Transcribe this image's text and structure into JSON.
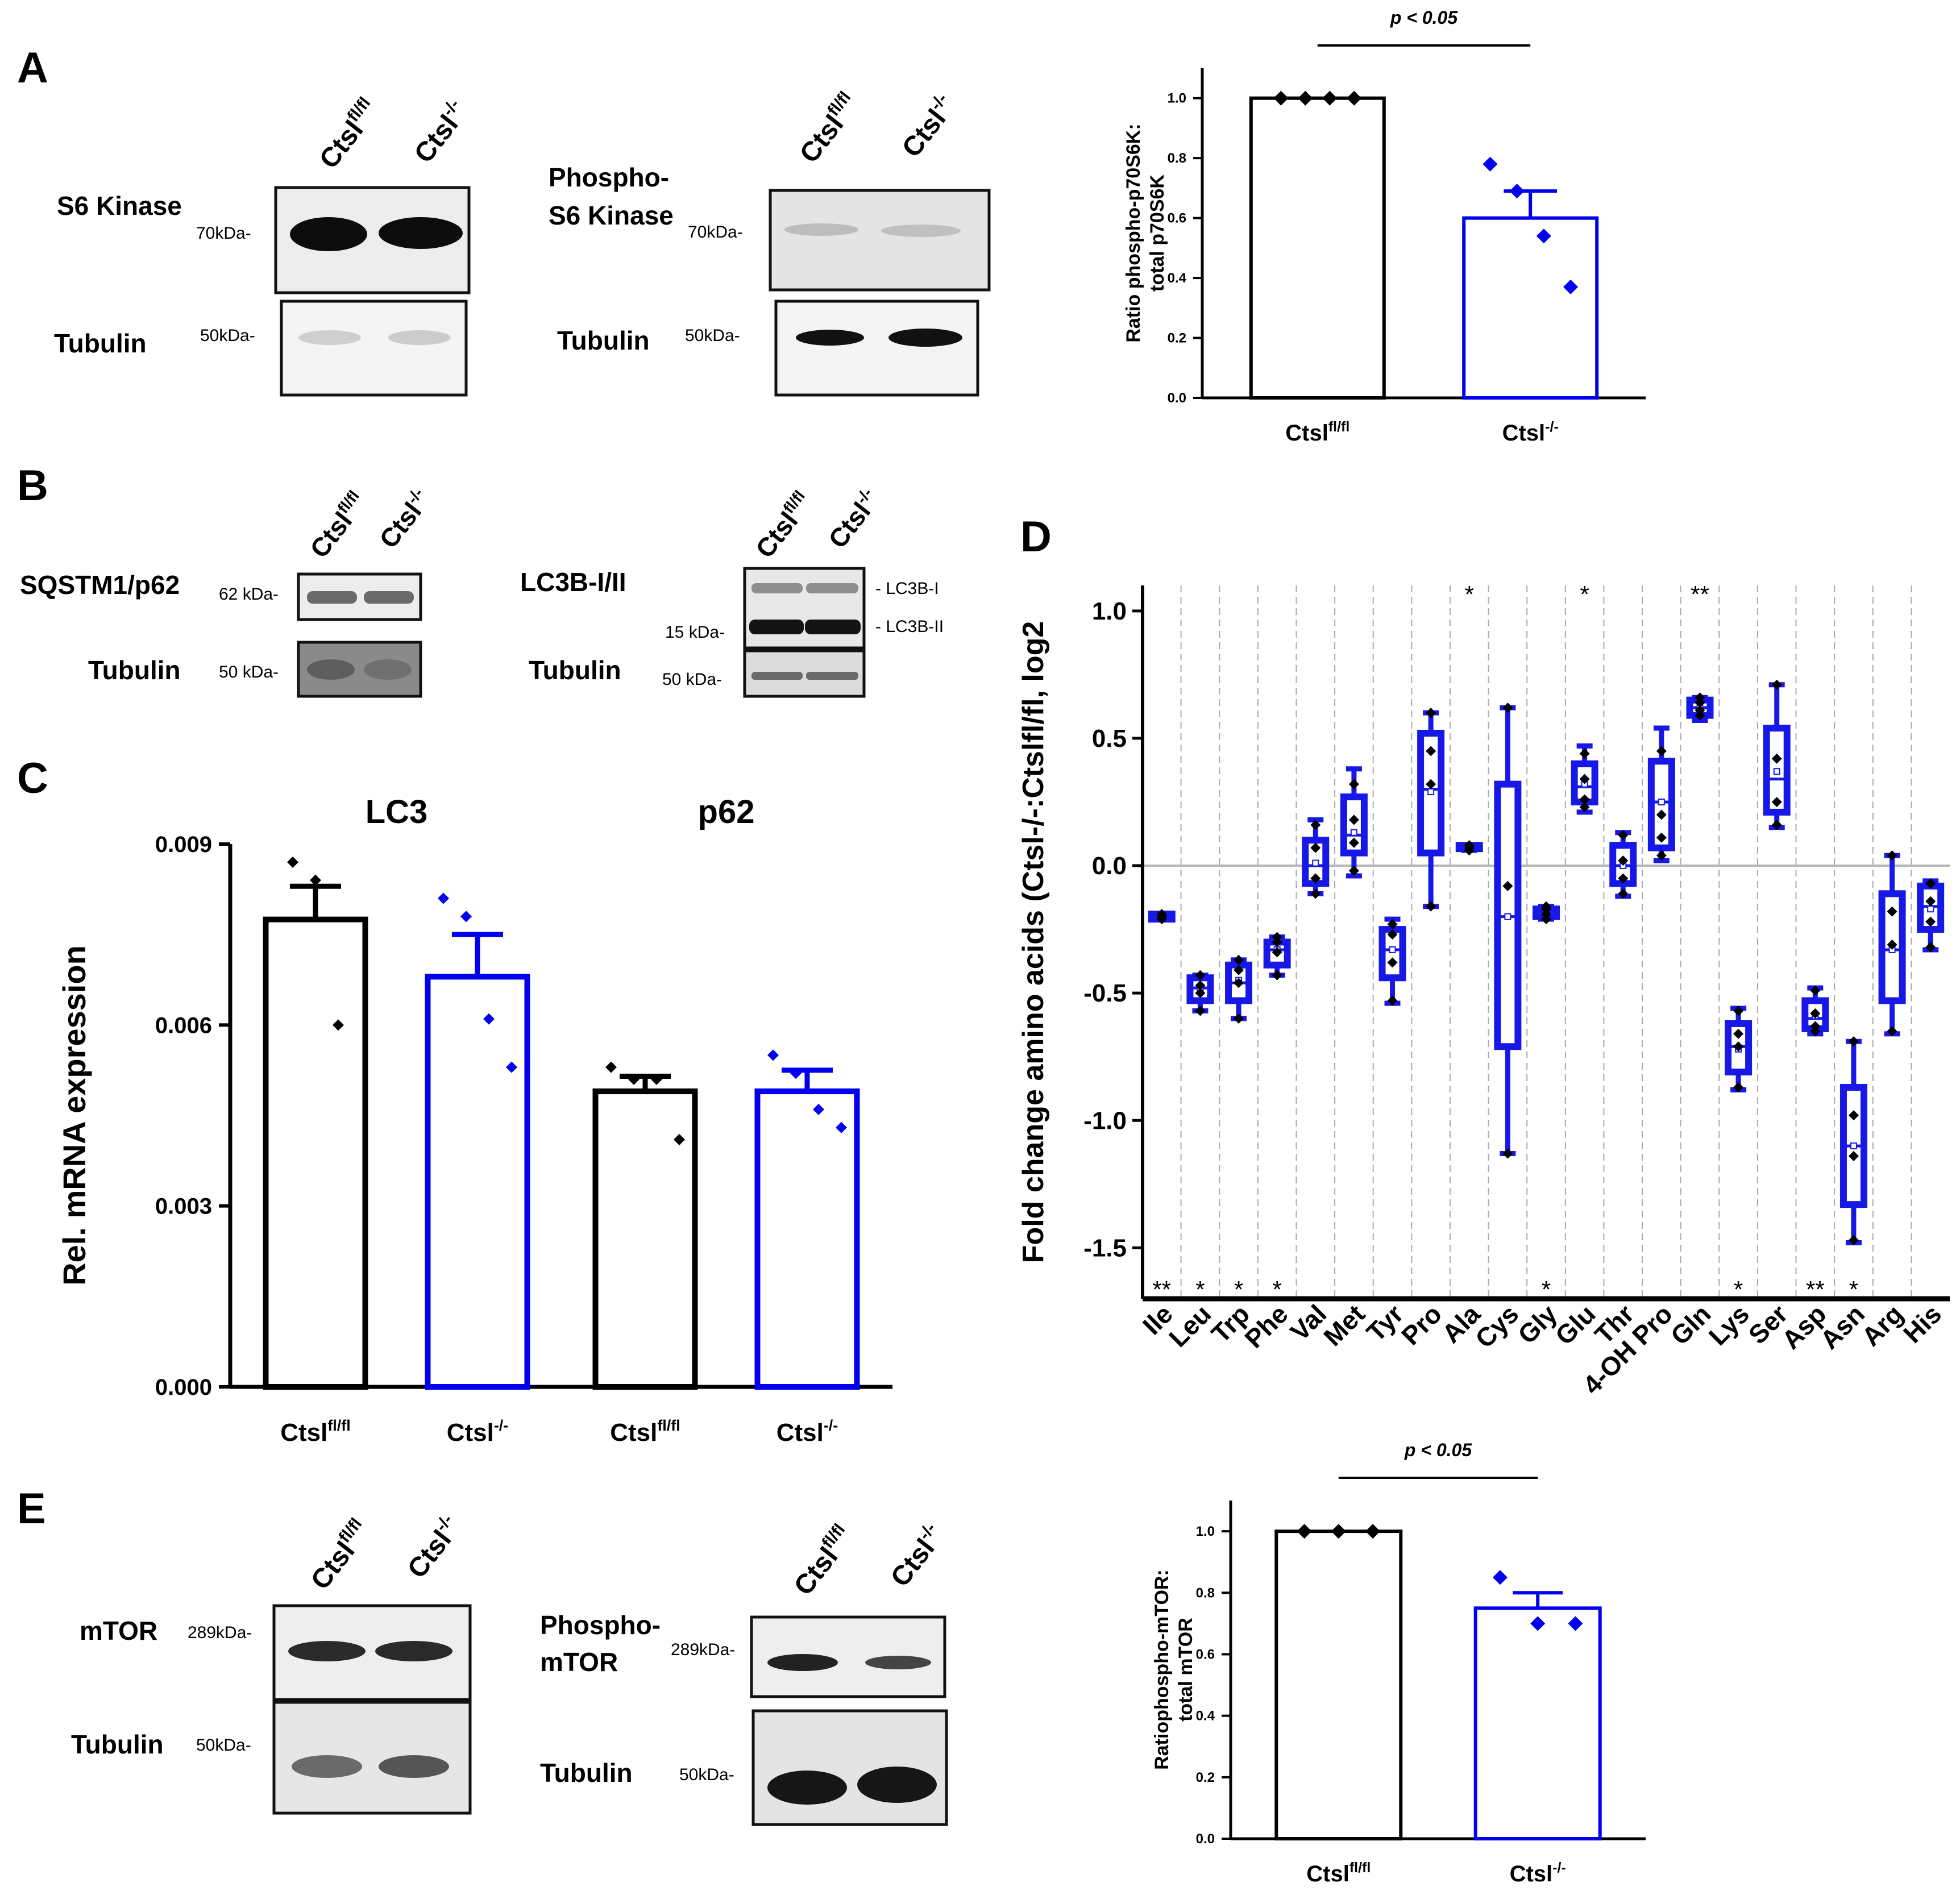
{
  "panels": {
    "a": "A",
    "b": "B",
    "c": "C",
    "d": "D",
    "e": "E"
  },
  "genotypes": {
    "fl": {
      "base": "Ctsl",
      "sup": "fl/fl"
    },
    "ko": {
      "base": "Ctsl",
      "sup": "-/-"
    }
  },
  "colors": {
    "wt": "#000000",
    "ko": "#0000ee",
    "box": "#1818e6",
    "grid": "#aaaaaa",
    "blot_bg": "#ececec",
    "band": "#111111"
  },
  "blots_a": {
    "s6_label": "S6 Kinase",
    "s6_mw": "70kDa-",
    "tub_label": "Tubulin",
    "tub_mw": "50kDa-",
    "ps6_label_1": "Phospho-",
    "ps6_label_2": "S6 Kinase",
    "ps6_mw": "70kDa-",
    "tub2_label": "Tubulin",
    "tub2_mw": "50kDa-"
  },
  "blots_b": {
    "p62_label": "SQSTM1/p62",
    "p62_mw": "62 kDa-",
    "tub_label": "Tubulin",
    "tub_mw": "50 kDa-",
    "lc3_label": "LC3B-I/II",
    "lc3_mw": "15 kDa-",
    "lc3_i": "- LC3B-I",
    "lc3_ii": "- LC3B-II",
    "tub2_label": "Tubulin",
    "tub2_mw": "50 kDa-"
  },
  "blots_e": {
    "mtor_label": "mTOR",
    "mtor_mw": "289kDa-",
    "tub_label": "Tubulin",
    "tub_mw": "50kDa-",
    "pmtor_label_1": "Phospho-",
    "pmtor_label_2": "mTOR",
    "pmtor_mw": "289kDa-",
    "tub2_label": "Tubulin",
    "tub2_mw": "50kDa-"
  },
  "chart_data": [
    {
      "id": "A-ratio",
      "type": "bar",
      "ylabel_1": "Ratio phospho-p70S6K:",
      "ylabel_2": "total p70S6K",
      "ylim": [
        0,
        1.1
      ],
      "yticks": [
        "0.0",
        "0.2",
        "0.4",
        "0.6",
        "0.8",
        "1.0"
      ],
      "ytick_values": [
        0,
        0.2,
        0.4,
        0.6,
        0.8,
        1.0
      ],
      "pvalue": "p < 0.05",
      "bars": [
        {
          "group": "Ctsl fl/fl",
          "mean": 1.0,
          "sem": 0,
          "points": [
            1.0,
            1.0,
            1.0,
            1.0
          ]
        },
        {
          "group": "Ctsl -/-",
          "mean": 0.6,
          "sem": 0.09,
          "points": [
            0.78,
            0.69,
            0.54,
            0.37
          ]
        }
      ]
    },
    {
      "id": "C-mrna",
      "type": "bar",
      "ylabel": "Rel. mRNA expression",
      "ylim": [
        0,
        0.009
      ],
      "yticks": [
        "0.000",
        "0.003",
        "0.006",
        "0.009"
      ],
      "ytick_values": [
        0,
        0.003,
        0.006,
        0.009
      ],
      "group_titles": [
        "LC3",
        "p62"
      ],
      "bars": [
        {
          "group": "Ctsl fl/fl",
          "gene": "LC3",
          "mean": 0.00775,
          "sem": 0.00055,
          "points": [
            0.0087,
            0.0084,
            0.006
          ]
        },
        {
          "group": "Ctsl -/-",
          "gene": "LC3",
          "mean": 0.0068,
          "sem": 0.0007,
          "points": [
            0.0081,
            0.0078,
            0.0061,
            0.0053
          ]
        },
        {
          "group": "Ctsl fl/fl",
          "gene": "p62",
          "mean": 0.0049,
          "sem": 0.00025,
          "points": [
            0.0053,
            0.0051,
            0.0051,
            0.0041
          ]
        },
        {
          "group": "Ctsl -/-",
          "gene": "p62",
          "mean": 0.0049,
          "sem": 0.00035,
          "points": [
            0.0055,
            0.0052,
            0.0046,
            0.0043
          ]
        }
      ]
    },
    {
      "id": "D-aminoacids",
      "type": "box",
      "ylabel": "Fold change amino acids (Ctsl-/-:Ctslfl/fl, log2",
      "ylim": [
        -1.7,
        1.1
      ],
      "yticks": [
        "1.0",
        "0.5",
        "0.0",
        "-0.5",
        "-1.0",
        "-1.5"
      ],
      "ytick_values": [
        1.0,
        0.5,
        0.0,
        -0.5,
        -1.0,
        -1.5
      ],
      "categories": [
        "Ile",
        "Leu",
        "Trp",
        "Phe",
        "Val",
        "Met",
        "Tyr",
        "Pro",
        "Ala",
        "Cys",
        "Gly",
        "Glu",
        "Thr",
        "4-OH Pro",
        "Gln",
        "Lys",
        "Ser",
        "Asp",
        "Asn",
        "Arg",
        "His"
      ],
      "boxes": [
        {
          "aa": "Ile",
          "min": -0.21,
          "q1": -0.21,
          "median": -0.2,
          "mean": -0.2,
          "q3": -0.19,
          "max": -0.19,
          "points": [
            -0.19,
            -0.2,
            -0.2,
            -0.21
          ]
        },
        {
          "aa": "Leu",
          "min": -0.57,
          "q1": -0.53,
          "median": -0.48,
          "mean": -0.48,
          "q3": -0.44,
          "max": -0.43,
          "points": [
            -0.43,
            -0.47,
            -0.5,
            -0.57
          ]
        },
        {
          "aa": "Trp",
          "min": -0.6,
          "q1": -0.53,
          "median": -0.46,
          "mean": -0.45,
          "q3": -0.39,
          "max": -0.37,
          "points": [
            -0.37,
            -0.41,
            -0.46,
            -0.6
          ]
        },
        {
          "aa": "Phe",
          "min": -0.43,
          "q1": -0.39,
          "median": -0.33,
          "mean": -0.33,
          "q3": -0.3,
          "max": -0.28,
          "points": [
            -0.28,
            -0.3,
            -0.34,
            -0.43
          ]
        },
        {
          "aa": "Val",
          "min": -0.11,
          "q1": -0.07,
          "median": 0.0,
          "mean": 0.01,
          "q3": 0.1,
          "max": 0.18,
          "points": [
            0.16,
            0.07,
            -0.05,
            -0.11
          ]
        },
        {
          "aa": "Met",
          "min": -0.04,
          "q1": 0.05,
          "median": 0.12,
          "mean": 0.13,
          "q3": 0.27,
          "max": 0.38,
          "points": [
            0.32,
            0.18,
            0.09,
            -0.02
          ]
        },
        {
          "aa": "Tyr",
          "min": -0.54,
          "q1": -0.44,
          "median": -0.33,
          "mean": -0.33,
          "q3": -0.25,
          "max": -0.21,
          "points": [
            -0.23,
            -0.27,
            -0.38,
            -0.53
          ]
        },
        {
          "aa": "Pro",
          "min": -0.16,
          "q1": 0.05,
          "median": 0.3,
          "mean": 0.29,
          "q3": 0.52,
          "max": 0.6,
          "points": [
            0.6,
            0.45,
            0.32,
            -0.16
          ]
        },
        {
          "aa": "Ala",
          "min": 0.06,
          "q1": 0.07,
          "median": 0.07,
          "mean": 0.07,
          "q3": 0.08,
          "max": 0.08,
          "points": [
            0.08,
            0.07,
            0.07,
            0.06
          ]
        },
        {
          "aa": "Cys",
          "min": -1.13,
          "q1": -0.71,
          "median": -0.2,
          "mean": -0.2,
          "q3": 0.32,
          "max": 0.62,
          "points": [
            0.62,
            -0.08,
            -1.13
          ]
        },
        {
          "aa": "Gly",
          "min": -0.21,
          "q1": -0.2,
          "median": -0.18,
          "mean": -0.18,
          "q3": -0.17,
          "max": -0.16,
          "points": [
            -0.16,
            -0.17,
            -0.19,
            -0.21
          ]
        },
        {
          "aa": "Glu",
          "min": 0.21,
          "q1": 0.25,
          "median": 0.31,
          "mean": 0.32,
          "q3": 0.4,
          "max": 0.47,
          "points": [
            0.44,
            0.34,
            0.26,
            0.23
          ]
        },
        {
          "aa": "Thr",
          "min": -0.12,
          "q1": -0.07,
          "median": 0.0,
          "mean": 0.0,
          "q3": 0.08,
          "max": 0.13,
          "points": [
            0.12,
            0.02,
            -0.05,
            -0.11
          ]
        },
        {
          "aa": "4-OH Pro",
          "min": 0.02,
          "q1": 0.07,
          "median": 0.25,
          "mean": 0.25,
          "q3": 0.41,
          "max": 0.54,
          "points": [
            0.45,
            0.2,
            0.11,
            0.04
          ]
        },
        {
          "aa": "Gln",
          "min": 0.57,
          "q1": 0.59,
          "median": 0.62,
          "mean": 0.62,
          "q3": 0.65,
          "max": 0.66,
          "points": [
            0.66,
            0.64,
            0.61,
            0.59
          ]
        },
        {
          "aa": "Lys",
          "min": -0.88,
          "q1": -0.81,
          "median": -0.71,
          "mean": -0.72,
          "q3": -0.62,
          "max": -0.56,
          "points": [
            -0.57,
            -0.66,
            -0.71,
            -0.87
          ]
        },
        {
          "aa": "Ser",
          "min": 0.15,
          "q1": 0.21,
          "median": 0.34,
          "mean": 0.37,
          "q3": 0.54,
          "max": 0.71,
          "points": [
            0.71,
            0.42,
            0.25,
            0.16
          ]
        },
        {
          "aa": "Asp",
          "min": -0.66,
          "q1": -0.64,
          "median": -0.6,
          "mean": -0.59,
          "q3": -0.53,
          "max": -0.48,
          "points": [
            -0.49,
            -0.58,
            -0.63,
            -0.65
          ]
        },
        {
          "aa": "Asn",
          "min": -1.48,
          "q1": -1.33,
          "median": -1.1,
          "mean": -1.1,
          "q3": -0.87,
          "max": -0.69,
          "points": [
            -0.69,
            -0.98,
            -1.14,
            -1.47
          ]
        },
        {
          "aa": "Arg",
          "min": -0.66,
          "q1": -0.53,
          "median": -0.33,
          "mean": -0.33,
          "q3": -0.11,
          "max": 0.04,
          "points": [
            0.04,
            -0.18,
            -0.31,
            -0.65
          ]
        },
        {
          "aa": "His",
          "min": -0.33,
          "q1": -0.25,
          "median": -0.16,
          "mean": -0.17,
          "q3": -0.08,
          "max": -0.06,
          "points": [
            -0.07,
            -0.14,
            -0.22,
            -0.32
          ]
        }
      ],
      "top_stars": [
        {
          "aa": "Ala",
          "label": "*"
        },
        {
          "aa": "Glu",
          "label": "*"
        },
        {
          "aa": "Gln",
          "label": "**"
        }
      ],
      "bottom_stars": [
        {
          "aa": "Ile",
          "label": "**"
        },
        {
          "aa": "Leu",
          "label": "*"
        },
        {
          "aa": "Trp",
          "label": "*"
        },
        {
          "aa": "Phe",
          "label": "*"
        },
        {
          "aa": "Gly",
          "label": "*"
        },
        {
          "aa": "Lys",
          "label": "*"
        },
        {
          "aa": "Asp",
          "label": "**"
        },
        {
          "aa": "Asn",
          "label": "*"
        }
      ]
    },
    {
      "id": "E-ratio",
      "type": "bar",
      "ylabel_1": "Ratiophospho-mTOR:",
      "ylabel_2": "total mTOR",
      "ylim": [
        0,
        1.1
      ],
      "yticks": [
        "0.0",
        "0.2",
        "0.4",
        "0.6",
        "0.8",
        "1.0"
      ],
      "ytick_values": [
        0,
        0.2,
        0.4,
        0.6,
        0.8,
        1.0
      ],
      "pvalue": "p < 0.05",
      "bars": [
        {
          "group": "Ctsl fl/fl",
          "mean": 1.0,
          "sem": 0,
          "points": [
            1.0,
            1.0,
            1.0
          ]
        },
        {
          "group": "Ctsl -/-",
          "mean": 0.75,
          "sem": 0.05,
          "points": [
            0.85,
            0.7,
            0.7
          ]
        }
      ]
    }
  ]
}
